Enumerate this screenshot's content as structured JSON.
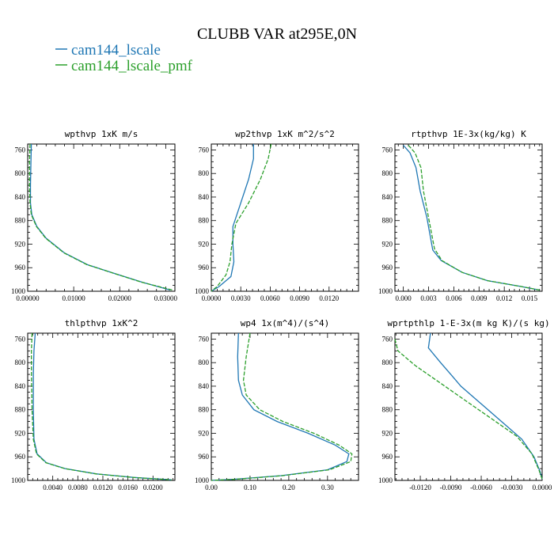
{
  "title": "CLUBB VAR at295E,0N",
  "colors": {
    "blue": "#1f77b4",
    "green": "#2ca02c"
  },
  "legend": [
    {
      "label": "cam144_lscale",
      "color": "#1f77b4"
    },
    {
      "label": "cam144_lscale_pmf",
      "color": "#2ca02c"
    }
  ],
  "chart_data": [
    {
      "type": "line",
      "title": "wpthvp  1xK m/s",
      "ylim": [
        1000,
        750
      ],
      "y_ticks": [
        760,
        800,
        840,
        880,
        920,
        960,
        1000
      ],
      "xlim": [
        0,
        0.032
      ],
      "x_ticks": [
        0,
        0.01,
        0.02,
        0.03
      ],
      "x_tick_labels": [
        "0.00000",
        "0.01000",
        "0.02000",
        "0.03000"
      ],
      "series": [
        {
          "name": "cam144_lscale",
          "points": [
            [
              0.0008,
              750
            ],
            [
              0.0007,
              780
            ],
            [
              0.0006,
              820
            ],
            [
              0.0006,
              850
            ],
            [
              0.0009,
              870
            ],
            [
              0.002,
              890
            ],
            [
              0.004,
              910
            ],
            [
              0.008,
              935
            ],
            [
              0.013,
              955
            ],
            [
              0.019,
              970
            ],
            [
              0.025,
              985
            ],
            [
              0.031,
              998
            ]
          ]
        },
        {
          "name": "cam144_lscale_pmf",
          "points": [
            [
              0.0005,
              750
            ],
            [
              0.0004,
              780
            ],
            [
              0.0004,
              820
            ],
            [
              0.0005,
              850
            ],
            [
              0.0008,
              870
            ],
            [
              0.0019,
              890
            ],
            [
              0.0039,
              910
            ],
            [
              0.0079,
              935
            ],
            [
              0.0129,
              955
            ],
            [
              0.0189,
              970
            ],
            [
              0.0249,
              985
            ],
            [
              0.0315,
              998
            ]
          ]
        }
      ]
    },
    {
      "type": "line",
      "title": "wp2thvp  1xK m^2/s^2",
      "ylim": [
        1000,
        750
      ],
      "y_ticks": [
        760,
        800,
        840,
        880,
        920,
        960,
        1000
      ],
      "xlim": [
        0,
        0.015
      ],
      "x_ticks": [
        0,
        0.003,
        0.006,
        0.009,
        0.012
      ],
      "x_tick_labels": [
        "0.0000",
        "0.0030",
        "0.0060",
        "0.0090",
        "0.0120"
      ],
      "series": [
        {
          "name": "cam144_lscale",
          "points": [
            [
              0.0043,
              750
            ],
            [
              0.0043,
              775
            ],
            [
              0.0038,
              810
            ],
            [
              0.003,
              850
            ],
            [
              0.0022,
              890
            ],
            [
              0.0022,
              920
            ],
            [
              0.0023,
              950
            ],
            [
              0.002,
              975
            ],
            [
              0.0008,
              992
            ],
            [
              0.0,
              1000
            ]
          ]
        },
        {
          "name": "cam144_lscale_pmf",
          "points": [
            [
              0.0061,
              750
            ],
            [
              0.0058,
              775
            ],
            [
              0.005,
              810
            ],
            [
              0.0038,
              850
            ],
            [
              0.0025,
              885
            ],
            [
              0.0021,
              920
            ],
            [
              0.0019,
              950
            ],
            [
              0.0015,
              972
            ],
            [
              0.0006,
              992
            ],
            [
              0.0,
              1000
            ]
          ]
        }
      ]
    },
    {
      "type": "line",
      "title": "rtpthvp  1E-3x(kg/kg) K",
      "ylim": [
        1000,
        750
      ],
      "y_ticks": [
        760,
        800,
        840,
        880,
        920,
        960,
        1000
      ],
      "xlim": [
        -0.001,
        0.0165
      ],
      "x_ticks": [
        0,
        0.003,
        0.006,
        0.009,
        0.012,
        0.015
      ],
      "x_tick_labels": [
        "0.000",
        "0.003",
        "0.006",
        "0.009",
        "0.012",
        "0.015"
      ],
      "series": [
        {
          "name": "cam144_lscale",
          "points": [
            [
              0.0,
              752
            ],
            [
              0.0008,
              765
            ],
            [
              0.0015,
              790
            ],
            [
              0.002,
              830
            ],
            [
              0.0028,
              875
            ],
            [
              0.0035,
              930
            ],
            [
              0.0045,
              948
            ],
            [
              0.007,
              968
            ],
            [
              0.01,
              982
            ],
            [
              0.014,
              992
            ],
            [
              0.0162,
              998
            ]
          ]
        },
        {
          "name": "cam144_lscale_pmf",
          "points": [
            [
              0.0006,
              752
            ],
            [
              0.0014,
              765
            ],
            [
              0.0021,
              790
            ],
            [
              0.0024,
              830
            ],
            [
              0.003,
              875
            ],
            [
              0.0037,
              928
            ],
            [
              0.0046,
              948
            ],
            [
              0.007,
              968
            ],
            [
              0.01,
              982
            ],
            [
              0.014,
              992
            ],
            [
              0.0162,
              998
            ]
          ]
        }
      ]
    },
    {
      "type": "line",
      "title": "thlpthvp  1xK^2",
      "ylim": [
        1000,
        750
      ],
      "y_ticks": [
        760,
        800,
        840,
        880,
        920,
        960,
        1000
      ],
      "xlim": [
        0,
        0.0235
      ],
      "x_ticks": [
        0.004,
        0.008,
        0.012,
        0.016,
        0.02
      ],
      "x_tick_labels": [
        "0.0040",
        "0.0080",
        "0.0120",
        "0.0160",
        "0.0200"
      ],
      "series": [
        {
          "name": "cam144_lscale",
          "points": [
            [
              0.0012,
              750
            ],
            [
              0.001,
              780
            ],
            [
              0.0009,
              820
            ],
            [
              0.0009,
              880
            ],
            [
              0.001,
              930
            ],
            [
              0.0015,
              955
            ],
            [
              0.003,
              970
            ],
            [
              0.006,
              980
            ],
            [
              0.011,
              989
            ],
            [
              0.017,
              995
            ],
            [
              0.023,
              999
            ]
          ]
        },
        {
          "name": "cam144_lscale_pmf",
          "points": [
            [
              0.0007,
              750
            ],
            [
              0.0006,
              780
            ],
            [
              0.0006,
              820
            ],
            [
              0.0007,
              880
            ],
            [
              0.0009,
              930
            ],
            [
              0.0014,
              955
            ],
            [
              0.0029,
              970
            ],
            [
              0.0059,
              980
            ],
            [
              0.0109,
              989
            ],
            [
              0.0169,
              995
            ],
            [
              0.023,
              999
            ]
          ]
        }
      ]
    },
    {
      "type": "line",
      "title": "wp4  1x(m^4)/(s^4)",
      "ylim": [
        1000,
        750
      ],
      "y_ticks": [
        760,
        800,
        840,
        880,
        920,
        960,
        1000
      ],
      "xlim": [
        0,
        0.38
      ],
      "x_ticks": [
        0,
        0.1,
        0.2,
        0.3
      ],
      "x_tick_labels": [
        "0.00",
        "0.10",
        "0.20",
        "0.30"
      ],
      "series": [
        {
          "name": "cam144_lscale",
          "points": [
            [
              0.07,
              750
            ],
            [
              0.068,
              790
            ],
            [
              0.07,
              830
            ],
            [
              0.08,
              855
            ],
            [
              0.11,
              880
            ],
            [
              0.17,
              900
            ],
            [
              0.25,
              920
            ],
            [
              0.32,
              940
            ],
            [
              0.355,
              955
            ],
            [
              0.35,
              968
            ],
            [
              0.3,
              982
            ],
            [
              0.18,
              992
            ],
            [
              0.06,
              998
            ],
            [
              0.0,
              1000
            ]
          ]
        },
        {
          "name": "cam144_lscale_pmf",
          "points": [
            [
              0.1,
              750
            ],
            [
              0.09,
              790
            ],
            [
              0.083,
              830
            ],
            [
              0.09,
              855
            ],
            [
              0.125,
              880
            ],
            [
              0.185,
              900
            ],
            [
              0.265,
              920
            ],
            [
              0.33,
              940
            ],
            [
              0.363,
              955
            ],
            [
              0.36,
              968
            ],
            [
              0.305,
              982
            ],
            [
              0.185,
              992
            ],
            [
              0.065,
              998
            ],
            [
              0.0,
              1000
            ]
          ]
        }
      ]
    },
    {
      "type": "line",
      "title": "wprtpthlp  1-E-3x(m kg K)/(s kg)",
      "ylim": [
        1000,
        750
      ],
      "y_ticks": [
        760,
        800,
        840,
        880,
        920,
        960,
        1000
      ],
      "xlim": [
        -0.0145,
        0.0
      ],
      "x_ticks": [
        -0.012,
        -0.009,
        -0.006,
        -0.003,
        0.0
      ],
      "x_tick_labels": [
        "-0.0120",
        "-0.0090",
        "-0.0060",
        "-0.0030",
        "0.0000"
      ],
      "series": [
        {
          "name": "cam144_lscale",
          "points": [
            [
              -0.011,
              750
            ],
            [
              -0.0112,
              775
            ],
            [
              -0.01,
              800
            ],
            [
              -0.009,
              820
            ],
            [
              -0.008,
              840
            ],
            [
              -0.006,
              870
            ],
            [
              -0.004,
              900
            ],
            [
              -0.002,
              930
            ],
            [
              -0.0008,
              960
            ],
            [
              -0.0002,
              985
            ],
            [
              0.0,
              998
            ]
          ]
        },
        {
          "name": "cam144_lscale_pmf",
          "points": [
            [
              -0.0145,
              760
            ],
            [
              -0.0142,
              780
            ],
            [
              -0.0125,
              805
            ],
            [
              -0.01,
              835
            ],
            [
              -0.0075,
              865
            ],
            [
              -0.005,
              895
            ],
            [
              -0.0025,
              925
            ],
            [
              -0.001,
              955
            ],
            [
              -0.0003,
              983
            ],
            [
              0.0,
              998
            ]
          ]
        }
      ]
    }
  ]
}
